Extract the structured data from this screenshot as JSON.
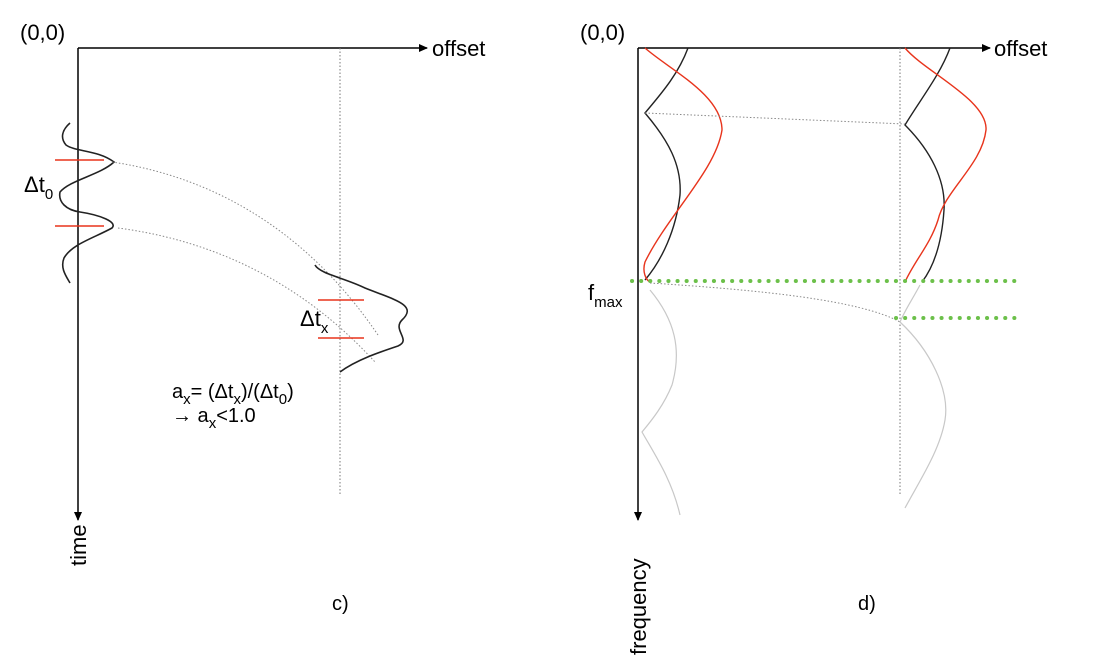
{
  "panel_c": {
    "origin_label": "(0,0)",
    "x_axis_label": "offset",
    "y_axis_label": "time",
    "dt0": {
      "base": "Δt",
      "sub": "0"
    },
    "dtx": {
      "base": "Δt",
      "sub": "x"
    },
    "formula_line1": {
      "p1": "a",
      "s1": "x",
      "p2": "= (Δt",
      "s2": "x",
      "p3": ")/(Δt",
      "s3": "0",
      "p4": ")"
    },
    "formula_line2": {
      "arrow": "→",
      "p1": " a",
      "s1": "x",
      "p2": "<1.0"
    },
    "caption": "c)"
  },
  "panel_d": {
    "origin_label": "(0,0)",
    "x_axis_label": "offset",
    "y_axis_label": "frequency",
    "fmax": {
      "base": "f",
      "sub": "max"
    },
    "caption": "d)"
  },
  "colors": {
    "axis": "#000000",
    "wavelet": "#222222",
    "red": "#e8341c",
    "green_dots": "#6cc04a",
    "faint": "#c8c8c8",
    "dotted_guides": "#777777"
  }
}
